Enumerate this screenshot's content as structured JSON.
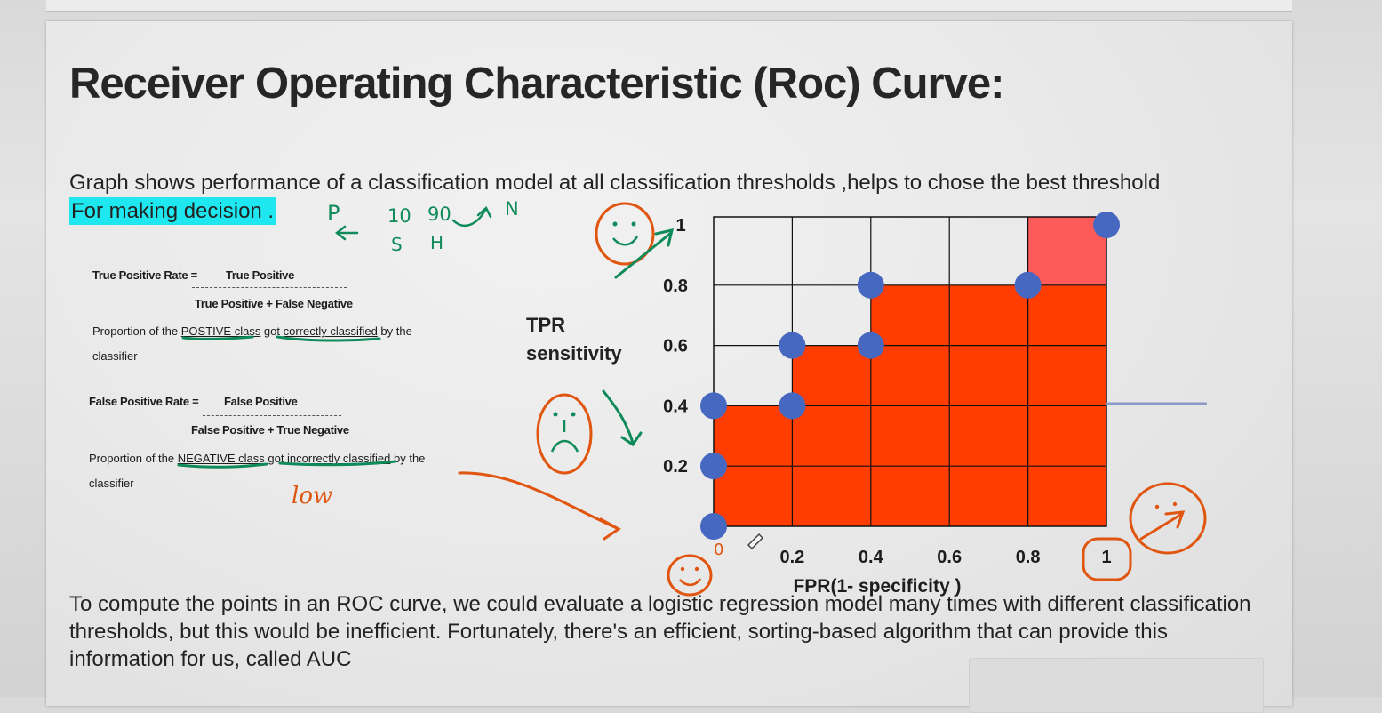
{
  "slide": {
    "title": "Receiver Operating Characteristic (Roc) Curve:",
    "intro_text": "Graph shows performance of a classification model at all classification thresholds ,helps to chose the best threshold",
    "intro_highlight": "For making decision .",
    "highlight_color": "#1ee7f0",
    "bottom_text": "To compute the points in an ROC curve, we could evaluate a logistic regression model many times with different classification thresholds, but this would be inefficient. Fortunately, there's an efficient, sorting-based algorithm that can provide this information for us, called AUC"
  },
  "definitions": {
    "tpr": {
      "label": "True Positive  Rate =",
      "numerator": "True Positive",
      "denominator": "True Positive + False Negative",
      "desc_part1": "Proportion of the ",
      "desc_ul1": "POSTIVE class",
      "desc_part2": " got ",
      "desc_ul2": "correctly classified",
      "desc_part3": " by the",
      "desc_line2": "classifier"
    },
    "fpr": {
      "label": "False Positive  Rate =",
      "numerator": "False  Positive",
      "denominator": "False Positive + True Negative",
      "desc_part1": "Proportion of the ",
      "desc_ul1": "NEGATIVE class",
      "desc_part2": " got ",
      "desc_ul2": "incorrectly classified",
      "desc_part3": " by the",
      "desc_line2": "classifier"
    }
  },
  "annotations": {
    "low": "low",
    "p": "P",
    "n": "N",
    "ten": "10",
    "ninety": "90",
    "s": "S",
    "h": "H",
    "zero": "0"
  },
  "colors": {
    "area_fill": "#ff3d00",
    "area_fill_light": "#ff5a5a",
    "point": "#4668c0",
    "ink_green": "#0f8a5a",
    "ink_orange": "#e0550f"
  },
  "chart_data": {
    "type": "area",
    "ylabel_line1": "TPR",
    "ylabel_line2": "sensitivity",
    "xlabel": "FPR(1- specificity )",
    "xlim": [
      0,
      1
    ],
    "ylim": [
      0,
      1
    ],
    "x_ticks": [
      "0.2",
      "0.4",
      "0.6",
      "0.8",
      "1"
    ],
    "y_ticks": [
      "0.2",
      "0.4",
      "0.6",
      "0.8",
      "1"
    ],
    "grid": true,
    "step_area": [
      {
        "x0": 0.0,
        "x1": 0.2,
        "y": 0.4
      },
      {
        "x0": 0.2,
        "x1": 0.4,
        "y": 0.6
      },
      {
        "x0": 0.4,
        "x1": 0.8,
        "y": 0.8
      },
      {
        "x0": 0.8,
        "x1": 1.0,
        "y": 1.0
      }
    ],
    "points": [
      {
        "x": 0.0,
        "y": 0.0
      },
      {
        "x": 0.0,
        "y": 0.2
      },
      {
        "x": 0.0,
        "y": 0.4
      },
      {
        "x": 0.2,
        "y": 0.4
      },
      {
        "x": 0.2,
        "y": 0.6
      },
      {
        "x": 0.4,
        "y": 0.6
      },
      {
        "x": 0.4,
        "y": 0.8
      },
      {
        "x": 0.8,
        "y": 0.8
      },
      {
        "x": 1.0,
        "y": 1.0
      }
    ]
  }
}
